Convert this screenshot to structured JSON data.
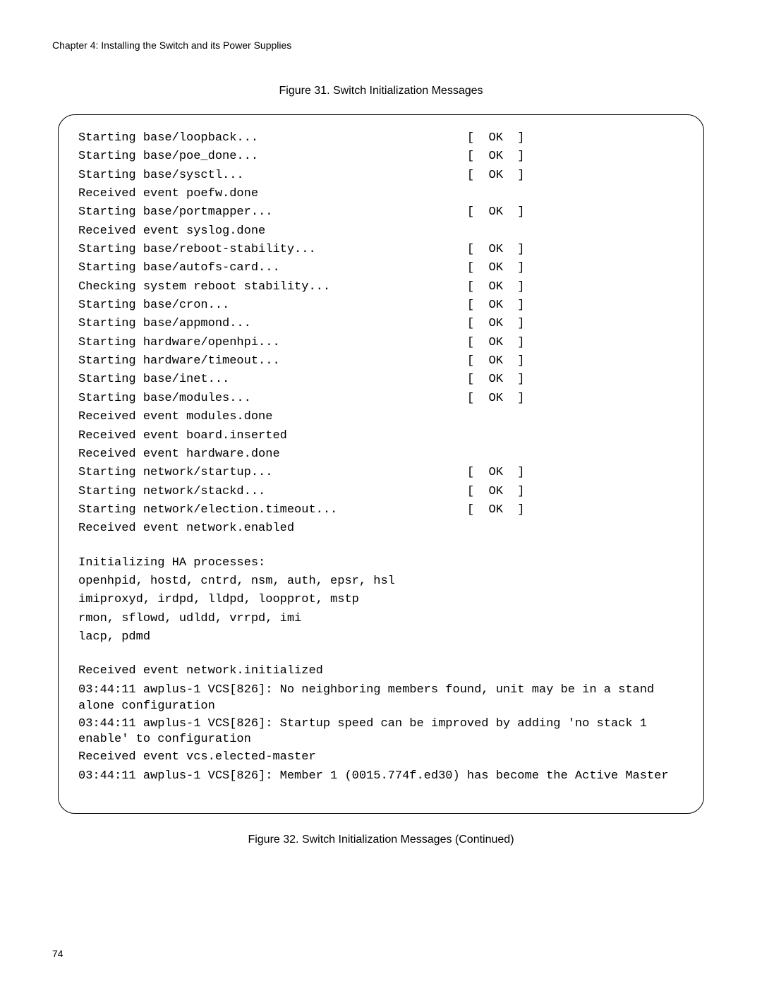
{
  "header": "Chapter 4: Installing the Switch and its Power Supplies",
  "caption1": "Figure 31. Switch Initialization Messages",
  "caption2": "Figure 32. Switch Initialization Messages (Continued)",
  "pageNumber": "74",
  "statusCol": 54,
  "ok": "[  OK  ]",
  "lines": [
    {
      "t": "Starting base/loopback...",
      "s": true
    },
    {
      "t": "Starting base/poe_done...",
      "s": true
    },
    {
      "t": "Starting base/sysctl...",
      "s": true
    },
    {
      "t": "Received event poefw.done"
    },
    {
      "t": "Starting base/portmapper...",
      "s": true
    },
    {
      "t": "Received event syslog.done"
    },
    {
      "t": "Starting base/reboot-stability...",
      "s": true
    },
    {
      "t": "Starting base/autofs-card...",
      "s": true
    },
    {
      "t": "Checking system reboot stability...",
      "s": true
    },
    {
      "t": "Starting base/cron...",
      "s": true
    },
    {
      "t": "Starting base/appmond...",
      "s": true
    },
    {
      "t": "Starting hardware/openhpi...",
      "s": true
    },
    {
      "t": "Starting hardware/timeout...",
      "s": true
    },
    {
      "t": "Starting base/inet...",
      "s": true
    },
    {
      "t": "Starting base/modules...",
      "s": true
    },
    {
      "t": "Received event modules.done"
    },
    {
      "t": "Received event board.inserted"
    },
    {
      "t": "Received event hardware.done"
    },
    {
      "t": "Starting network/startup...",
      "s": true
    },
    {
      "t": "Starting network/stackd...",
      "s": true
    },
    {
      "t": "Starting network/election.timeout...",
      "s": true
    },
    {
      "t": "Received event network.enabled"
    },
    {
      "blank": true
    },
    {
      "t": "Initializing HA processes:"
    },
    {
      "t": "openhpid, hostd, cntrd, nsm, auth, epsr, hsl"
    },
    {
      "t": "imiproxyd, irdpd, lldpd, loopprot, mstp"
    },
    {
      "t": "rmon, sflowd, udldd, vrrpd, imi"
    },
    {
      "t": "lacp, pdmd"
    },
    {
      "blank": true
    },
    {
      "t": "Received event network.initialized"
    },
    {
      "wrap": "03:44:11 awplus-1 VCS[826]: No neighboring members found, unit may be in a stand alone configuration"
    },
    {
      "wrap": "03:44:11 awplus-1 VCS[826]: Startup speed can be improved by adding 'no stack 1 enable' to configuration"
    },
    {
      "t": "Received event vcs.elected-master"
    },
    {
      "wrap": "03:44:11 awplus-1 VCS[826]: Member 1 (0015.774f.ed30) has become the Active Master"
    }
  ]
}
